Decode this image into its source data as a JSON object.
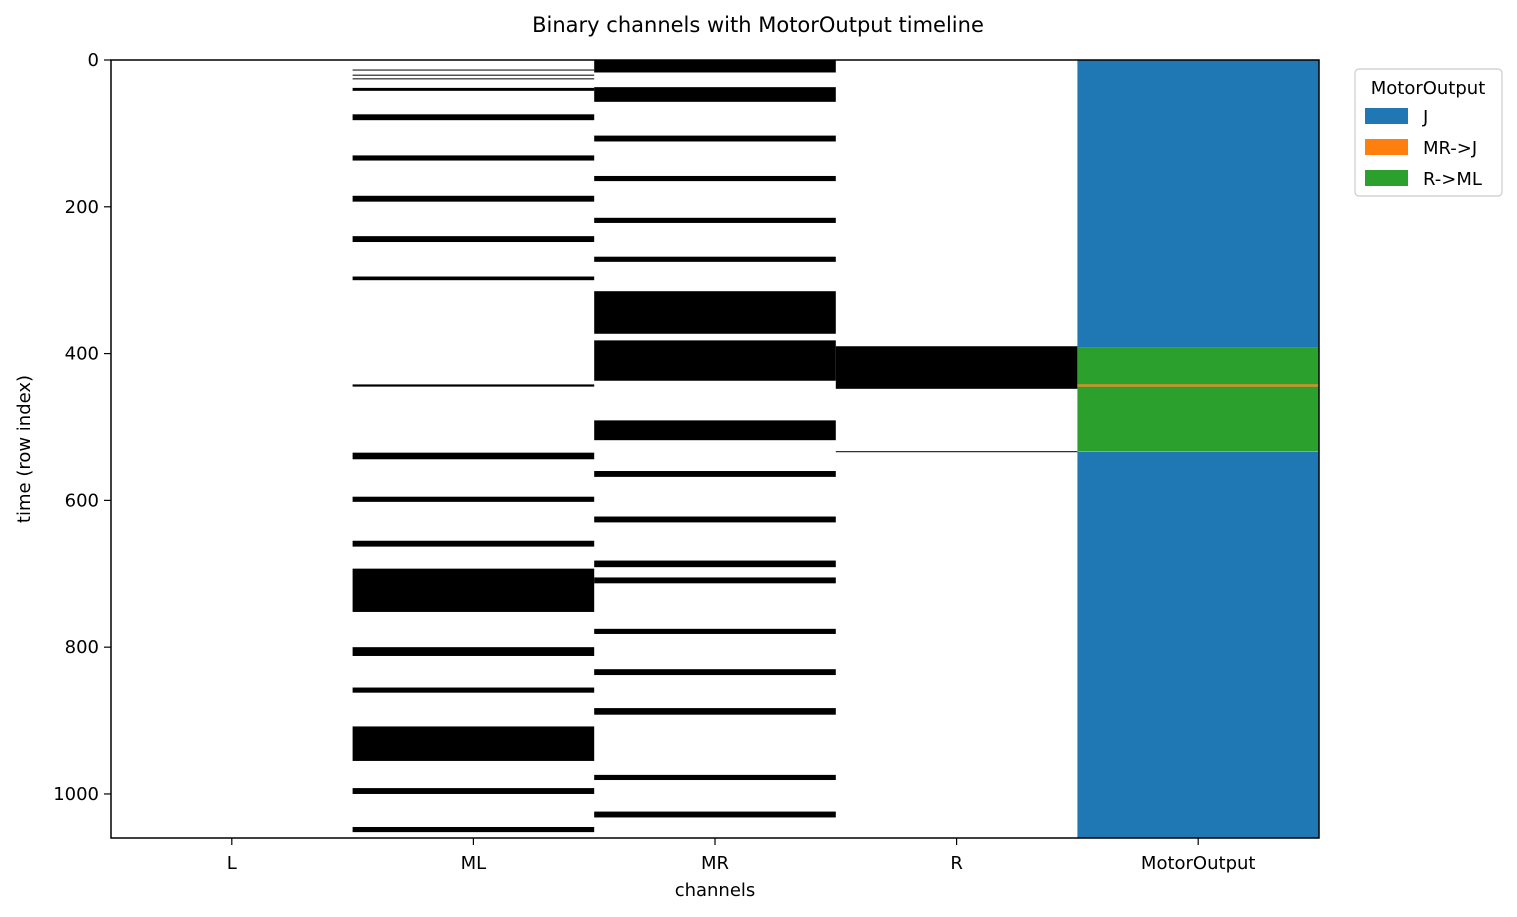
{
  "chart_data": {
    "type": "heatmap",
    "title": "Binary channels with MotorOutput timeline",
    "xlabel": "channels",
    "ylabel": "time (row index)",
    "categories": [
      "L",
      "ML",
      "MR",
      "R",
      "MotorOutput"
    ],
    "ylim": [
      1060,
      0
    ],
    "yticks": [
      0,
      200,
      400,
      600,
      800,
      1000
    ],
    "grid": false,
    "channels": [
      {
        "name": "L",
        "on_intervals": []
      },
      {
        "name": "ML",
        "on_intervals": [
          [
            13,
            14
          ],
          [
            20,
            21
          ],
          [
            25,
            26
          ],
          [
            38,
            42
          ],
          [
            74,
            82
          ],
          [
            130,
            137
          ],
          [
            185,
            193
          ],
          [
            240,
            248
          ],
          [
            295,
            300
          ],
          [
            442,
            445
          ],
          [
            535,
            544
          ],
          [
            595,
            602
          ],
          [
            655,
            663
          ],
          [
            693,
            752
          ],
          [
            800,
            812
          ],
          [
            855,
            862
          ],
          [
            908,
            955
          ],
          [
            992,
            1000
          ],
          [
            1045,
            1052
          ]
        ]
      },
      {
        "name": "MR",
        "on_intervals": [
          [
            0,
            17
          ],
          [
            37,
            57
          ],
          [
            103,
            111
          ],
          [
            158,
            165
          ],
          [
            215,
            222
          ],
          [
            268,
            275
          ],
          [
            315,
            373
          ],
          [
            382,
            437
          ],
          [
            491,
            518
          ],
          [
            560,
            568
          ],
          [
            622,
            630
          ],
          [
            682,
            691
          ],
          [
            705,
            713
          ],
          [
            775,
            782
          ],
          [
            830,
            838
          ],
          [
            883,
            892
          ],
          [
            974,
            981
          ],
          [
            1024,
            1032
          ]
        ]
      },
      {
        "name": "R",
        "on_intervals": [
          [
            390,
            448
          ],
          [
            533,
            534
          ]
        ]
      }
    ],
    "motor_output": {
      "name": "MotorOutput",
      "segments": [
        {
          "start": 0,
          "end": 392,
          "label": "J"
        },
        {
          "start": 392,
          "end": 442,
          "label": "R->ML"
        },
        {
          "start": 442,
          "end": 445,
          "label": "MR->J"
        },
        {
          "start": 445,
          "end": 533,
          "label": "R->ML"
        },
        {
          "start": 533,
          "end": 534,
          "label": "MR->J"
        },
        {
          "start": 534,
          "end": 1060,
          "label": "J"
        }
      ]
    },
    "legend": {
      "title": "MotorOutput",
      "placement": "upper-right-outside",
      "entries": [
        {
          "label": "J",
          "color": "#1f77b4"
        },
        {
          "label": "MR->J",
          "color": "#ff7f0e"
        },
        {
          "label": "R->ML",
          "color": "#2ca02c"
        }
      ]
    },
    "on_color": "#000000",
    "off_color": "#ffffff"
  }
}
